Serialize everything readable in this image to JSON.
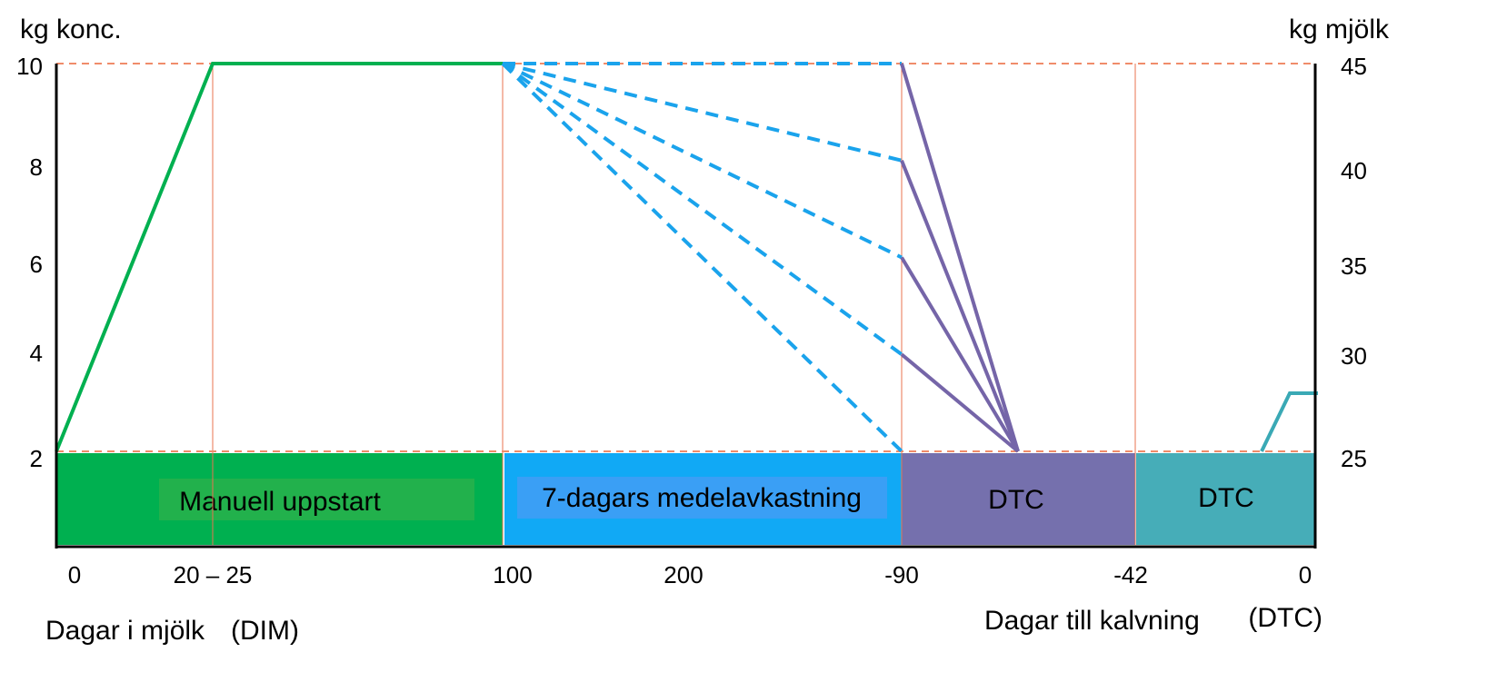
{
  "chart_data": {
    "type": "line",
    "left_axis_title": "kg konc.",
    "right_axis_title": "kg mjölk",
    "left_ticks": [
      "10",
      "8",
      "6",
      "4",
      "2"
    ],
    "left_tick_values": [
      10,
      8,
      6,
      4,
      2
    ],
    "right_ticks": [
      "45",
      "40",
      "35",
      "30",
      "25"
    ],
    "right_tick_values": [
      45,
      40,
      35,
      30,
      25
    ],
    "ylim": [
      0,
      10
    ],
    "x_ticks": [
      "0",
      "20 – 25",
      "100",
      "200",
      "-90",
      "-42",
      "0"
    ],
    "xlabel_left": "Dagar i mjölk",
    "xlabel_left_suffix": "(DIM)",
    "xlabel_right": "Dagar till kalvning",
    "xlabel_right_suffix": "(DTC)",
    "bands": [
      {
        "label": "Manuell uppstart",
        "color": "#00b050",
        "label_bg": "#22b14c",
        "label_color": "#ffffff"
      },
      {
        "label": "7-dagars medelavkastning",
        "color": "#11a9f5",
        "label_bg": "#3a9ff5",
        "label_color": "#ffffff"
      },
      {
        "label": "DTC",
        "color": "#7570ad",
        "label_color": "#ffffff"
      },
      {
        "label": "DTC",
        "color": "#46adb8",
        "label_color": "#ffffff"
      }
    ],
    "reference_lines": {
      "color": "#f08c6a",
      "values": [
        10,
        2
      ]
    },
    "series": [
      {
        "style": "solid",
        "color": "#00b050",
        "segment": "startup",
        "values": [
          2,
          10,
          10
        ]
      },
      {
        "style": "dashed",
        "color": "#1aa3ec",
        "segment": "milk-yield",
        "end_values": [
          10,
          8,
          6,
          4,
          2
        ]
      },
      {
        "style": "solid",
        "color": "#7565a8",
        "segment": "dtc",
        "start_values": [
          10,
          8,
          6,
          4
        ],
        "end_value": 2
      },
      {
        "style": "solid",
        "color": "#3aa9b5",
        "segment": "dtc-end",
        "values": [
          2,
          3.2,
          3.2
        ]
      }
    ],
    "grid": false
  }
}
